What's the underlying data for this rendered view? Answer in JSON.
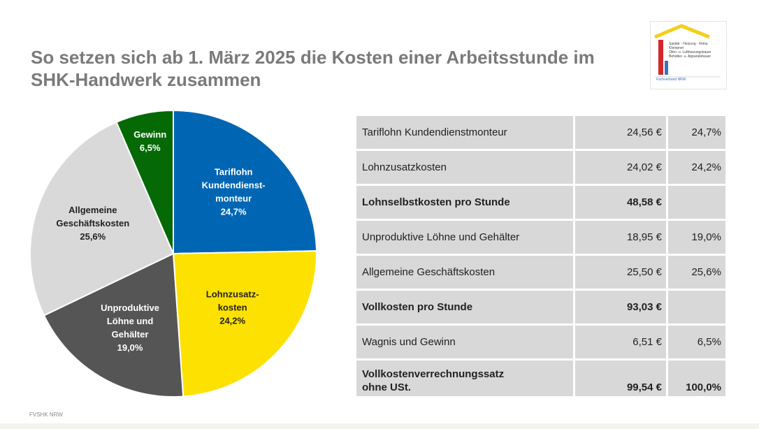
{
  "title": "So setzen sich ab 1. März 2025 die Kosten einer Arbeitsstunde im SHK-Handwerk zusammen",
  "logo": {
    "lines": [
      "Sanitär · Heizung · Klima",
      "Klempner",
      "Ofen- u. Luftheizungsbauer",
      "Behälter- u. Apparatebauer"
    ],
    "footer": "Fachverband NRW",
    "colors": {
      "roof": "#f3cf1c",
      "bar_red": "#d7262b",
      "bar_blue": "#3b73b9"
    }
  },
  "chart_data": {
    "type": "pie",
    "start_angle_deg": 0,
    "direction": "clockwise",
    "slices": [
      {
        "lines": [
          "Tariflohn",
          "Kundendienst-",
          "monteur",
          "24,7%"
        ],
        "value": 24.7,
        "color": "#0066b3",
        "text_color": "#ffffff",
        "label_r": 0.6
      },
      {
        "lines": [
          "Lohnzusatz-",
          "kosten",
          "24,2%"
        ],
        "value": 24.2,
        "color": "#fde100",
        "text_color": "#222222",
        "label_r": 0.56
      },
      {
        "lines": [
          "Unproduktive",
          "Löhne und",
          "Gehälter",
          "19,0%"
        ],
        "value": 19.0,
        "color": "#555555",
        "text_color": "#ffffff",
        "label_r": 0.6
      },
      {
        "lines": [
          "Allgemeine",
          "Geschäftskosten",
          "25,6%"
        ],
        "value": 25.6,
        "color": "#d9d9d9",
        "text_color": "#222222",
        "label_r": 0.6
      },
      {
        "lines": [
          "Gewinn",
          "6,5%"
        ],
        "value": 6.5,
        "color": "#056a05",
        "text_color": "#ffffff",
        "label_r": 0.8
      }
    ]
  },
  "table": {
    "rows": [
      {
        "lines": [
          "Tariflohn Kundendienstmonteur"
        ],
        "eur": "24,56 €",
        "pct": "24,7%",
        "bold": false
      },
      {
        "lines": [
          "Lohnzusatzkosten"
        ],
        "eur": "24,02 €",
        "pct": "24,2%",
        "bold": false
      },
      {
        "lines": [
          "Lohnselbstkosten pro Stunde"
        ],
        "eur": "48,58 €",
        "pct": "",
        "bold": true
      },
      {
        "lines": [
          "Unproduktive Löhne und Gehälter"
        ],
        "eur": "18,95 €",
        "pct": "19,0%",
        "bold": false
      },
      {
        "lines": [
          "Allgemeine Geschäftskosten"
        ],
        "eur": "25,50 €",
        "pct": "25,6%",
        "bold": false
      },
      {
        "lines": [
          "Vollkosten pro Stunde"
        ],
        "eur": "93,03 €",
        "pct": "",
        "bold": true
      },
      {
        "lines": [
          "Wagnis und Gewinn"
        ],
        "eur": "6,51 €",
        "pct": "6,5%",
        "bold": false
      },
      {
        "lines": [
          "Vollkostenverrechnungssatz",
          "ohne USt."
        ],
        "eur": "99,54 €",
        "pct": "100,0%",
        "bold": true
      }
    ]
  },
  "footer": "FVSHK NRW"
}
